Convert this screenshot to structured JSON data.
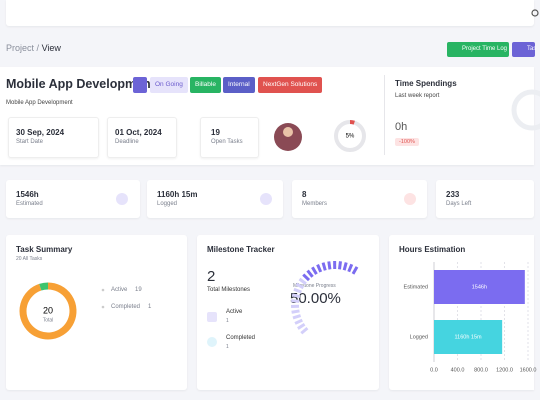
{
  "breadcrumb": {
    "parent": "Project",
    "separator": "/",
    "current": "View"
  },
  "actions": [
    "Project Time Log",
    "Tas"
  ],
  "project": {
    "title": "Mobile App Development",
    "tags": [
      "On Going",
      "Billable",
      "Internal",
      "NextGen Solutions"
    ],
    "subtitle": "Mobile App Development",
    "info": [
      {
        "value": "30 Sep, 2024",
        "label": "Start Date"
      },
      {
        "value": "01 Oct, 2024",
        "label": "Deadline"
      },
      {
        "value": "19",
        "label": "Open Tasks"
      }
    ],
    "progress": {
      "value": 5,
      "label": "5%"
    }
  },
  "time_spendings": {
    "title": "Time Spendings",
    "subtitle": "Last week report",
    "value": "0h",
    "change": "-100%"
  },
  "stats": [
    {
      "value": "1546h",
      "label": "Estimated"
    },
    {
      "value": "1160h 15m",
      "label": "Logged"
    },
    {
      "value": "8",
      "label": "Members"
    },
    {
      "value": "233",
      "label": "Days Left"
    }
  ],
  "task_summary": {
    "title": "Task Summary",
    "subtitle": "20 All Tasks",
    "total": 20,
    "total_label": "Total",
    "segments": [
      {
        "name": "Active",
        "value": 19,
        "color": "#f7a035"
      },
      {
        "name": "Completed",
        "value": 1,
        "color": "#3ec46d"
      }
    ]
  },
  "milestones": {
    "title": "Milestone Tracker",
    "total": 2,
    "total_label": "Total Milestones",
    "progress_label": "Milestone Progress",
    "progress": 50,
    "progress_text": "50.00%",
    "items": [
      {
        "name": "Active",
        "count": 1
      },
      {
        "name": "Completed",
        "count": 1
      }
    ]
  },
  "chart_data": {
    "type": "bar",
    "orientation": "horizontal",
    "title": "Hours Estimation",
    "categories": [
      "Estimated",
      "Logged"
    ],
    "values": [
      1546,
      1160.25
    ],
    "value_labels": [
      "1546h",
      "1160h 15m"
    ],
    "colors": [
      "#7b6cf0",
      "#45d4e0"
    ],
    "xlim": [
      0,
      1600
    ],
    "xticks": [
      {
        "value": 0,
        "label": "0.0"
      },
      {
        "value": 400,
        "label": "400.0"
      },
      {
        "value": 800,
        "label": "800.0"
      },
      {
        "value": 1200,
        "label": "1200.0"
      },
      {
        "value": 1600,
        "label": "1600.0"
      }
    ],
    "grid": true
  }
}
